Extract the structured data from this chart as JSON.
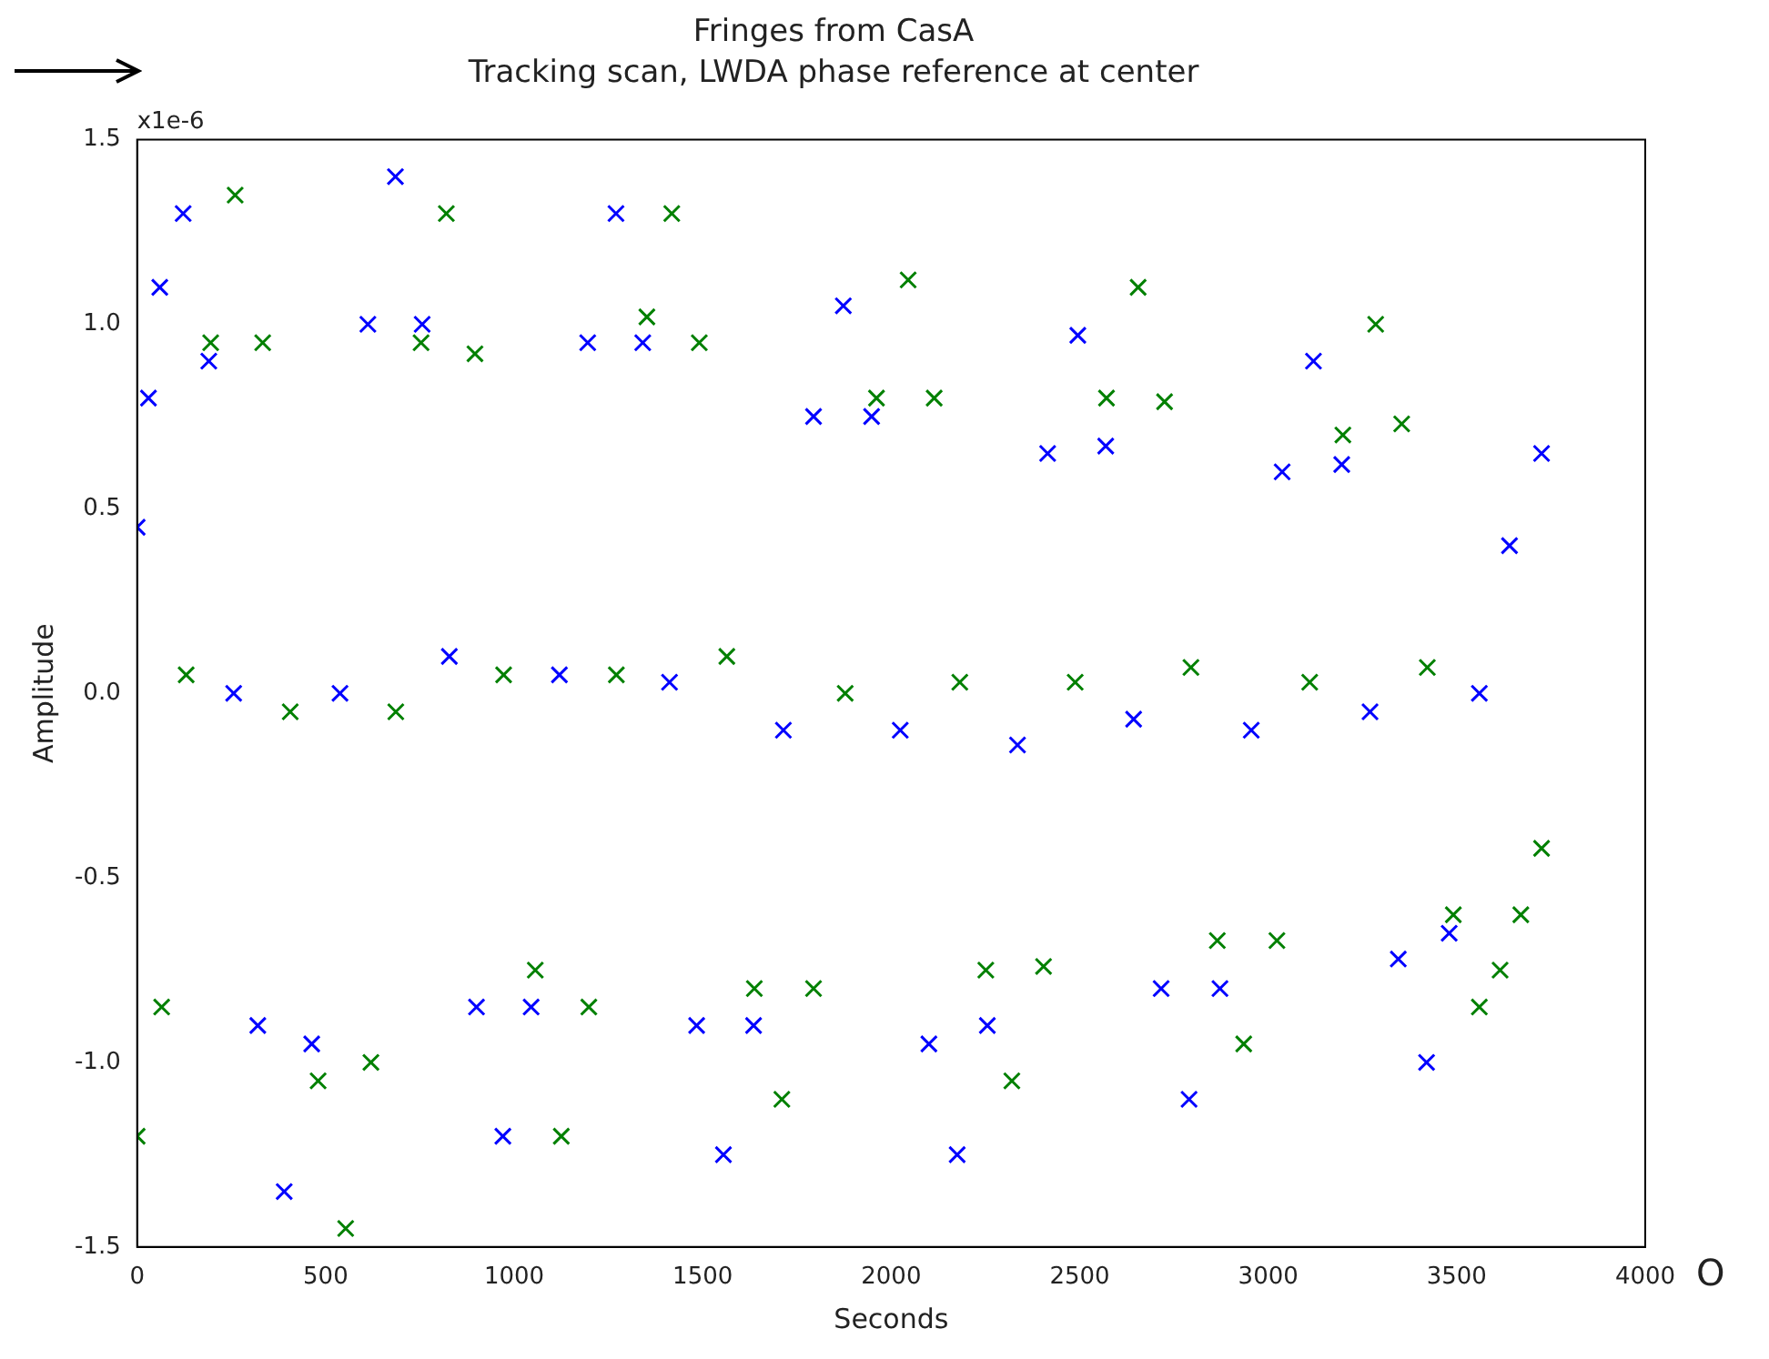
{
  "chart_data": {
    "type": "scatter",
    "title": "Fringes from CasA",
    "subtitle": "Tracking scan, LWDA phase reference at center",
    "xlabel": "Seconds",
    "ylabel": "Amplitude",
    "annotations": [
      "x1e-6",
      "O"
    ],
    "xlim": [
      0,
      4000
    ],
    "xticks": [
      0,
      500,
      1000,
      1500,
      2000,
      2500,
      3000,
      3500,
      4000
    ],
    "ylim": [
      -1.5,
      1.5
    ],
    "yticks": [
      -1.5,
      {
        "value": -1,
        "label": "-1.0"
      },
      -0.5,
      {
        "value": 0,
        "label": "0.0"
      },
      0.5,
      {
        "value": 1,
        "label": "1.0"
      },
      1.5
    ],
    "grid": false,
    "legend": false,
    "marker": "cross",
    "series": [
      {
        "color": "#0000ff",
        "x": [
          0,
          30,
          60,
          122,
          190,
          256,
          320,
          390,
          463,
          538,
          612,
          685,
          756,
          828,
          900,
          970,
          1045,
          1120,
          1195,
          1270,
          1341,
          1412,
          1484,
          1555,
          1635,
          1714,
          1794,
          1873,
          1948,
          2024,
          2100,
          2175,
          2255,
          2335,
          2415,
          2495,
          2569,
          2643,
          2716,
          2790,
          2872,
          2955,
          3037,
          3120,
          3195,
          3270,
          3345,
          3420,
          3480,
          3560,
          3640,
          3725
        ],
        "values": [
          0.45,
          0.8,
          1.1,
          1.3,
          0.9,
          0,
          -0.9,
          -1.35,
          -0.95,
          0,
          1,
          1.4,
          1,
          0.1,
          -0.85,
          -1.2,
          -0.85,
          0.05,
          0.95,
          1.3,
          0.95,
          0.03,
          -0.9,
          -1.25,
          -0.9,
          -0.1,
          0.75,
          1.05,
          0.75,
          -0.1,
          -0.95,
          -1.25,
          -0.9,
          -0.14,
          0.65,
          0.97,
          0.67,
          -0.07,
          -0.8,
          -1.1,
          -0.8,
          -0.1,
          0.6,
          0.9,
          0.62,
          -0.05,
          -0.72,
          -1,
          -0.65,
          0,
          0.4,
          0.65
        ]
      },
      {
        "color": "#008000",
        "x": [
          0,
          65,
          130,
          195,
          260,
          333,
          406,
          480,
          553,
          620,
          686,
          753,
          820,
          896,
          972,
          1056,
          1125,
          1198,
          1271,
          1352,
          1418,
          1491,
          1564,
          1637,
          1710,
          1794,
          1878,
          1961,
          2045,
          2114,
          2182,
          2251,
          2320,
          2404,
          2488,
          2571,
          2655,
          2725,
          2795,
          2865,
          2935,
          3023,
          3110,
          3198,
          3285,
          3354,
          3422,
          3491,
          3560,
          3615,
          3670,
          3725
        ],
        "values": [
          -1.2,
          -0.85,
          0.05,
          0.95,
          1.35,
          0.95,
          -0.05,
          -1.05,
          -1.45,
          -1,
          -0.05,
          0.95,
          1.3,
          0.92,
          0.05,
          -0.75,
          -1.2,
          -0.85,
          0.05,
          1.02,
          1.3,
          0.95,
          0.1,
          -0.8,
          -1.1,
          -0.8,
          0,
          0.8,
          1.12,
          0.8,
          0.03,
          -0.75,
          -1.05,
          -0.74,
          0.03,
          0.8,
          1.1,
          0.79,
          0.07,
          -0.67,
          -0.95,
          -0.67,
          0.03,
          0.7,
          1,
          0.73,
          0.07,
          -0.6,
          -0.85,
          -0.75,
          -0.6,
          -0.42
        ]
      }
    ]
  }
}
